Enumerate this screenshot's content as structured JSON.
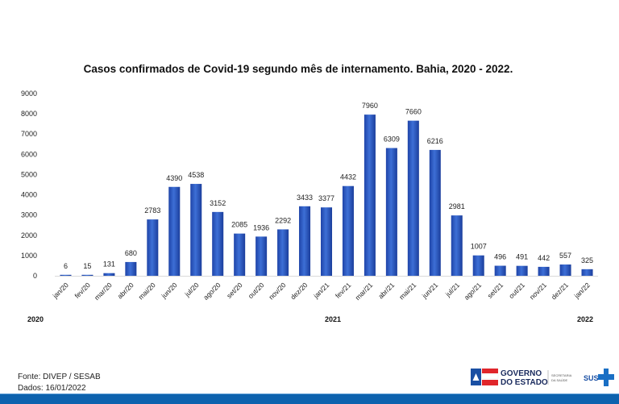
{
  "chart_data": {
    "type": "bar",
    "title": "Casos confirmados de Covid-19 segundo mês de internamento. Bahia, 2020 - 2022.",
    "xlabel": "",
    "ylabel": "",
    "ylim": [
      0,
      9000
    ],
    "yticks": [
      "0",
      "1000",
      "2000",
      "3000",
      "4000",
      "5000",
      "6000",
      "7000",
      "8000",
      "9000"
    ],
    "grid": false,
    "legend": "none",
    "categories": [
      "jan/20",
      "fev/20",
      "mar/20",
      "abr/20",
      "mai/20",
      "jun/20",
      "jul/20",
      "ago/20",
      "set/20",
      "out/20",
      "nov/20",
      "dez/20",
      "jan/21",
      "fev/21",
      "mar/21",
      "abr/21",
      "mai/21",
      "jun/21",
      "jul/21",
      "ago/21",
      "set/21",
      "out/21",
      "nov/21",
      "dez/21",
      "jan/22"
    ],
    "values": [
      6,
      15,
      131,
      680,
      2783,
      4390,
      4538,
      3152,
      2085,
      1936,
      2292,
      3433,
      3377,
      4432,
      7960,
      6309,
      7660,
      6216,
      2981,
      1007,
      496,
      491,
      442,
      557,
      325
    ],
    "year_labels": [
      "2020",
      "2021",
      "2022"
    ],
    "bar_color": "#2f5cc4"
  },
  "footer": {
    "source": "Fonte: DIVEP / SESAB",
    "date": "Dados: 16/01/2022"
  },
  "logos": {
    "governo_line1": "GOVERNO",
    "governo_line2": "DO ESTADO",
    "secretaria_line1": "SECRETARIA",
    "secretaria_line2": "DA SAÚDE",
    "sus": "SUS"
  },
  "colors": {
    "bottom_bar": "#0d62ae",
    "logo_red": "#e0262b",
    "logo_blue": "#1a4fa3"
  }
}
